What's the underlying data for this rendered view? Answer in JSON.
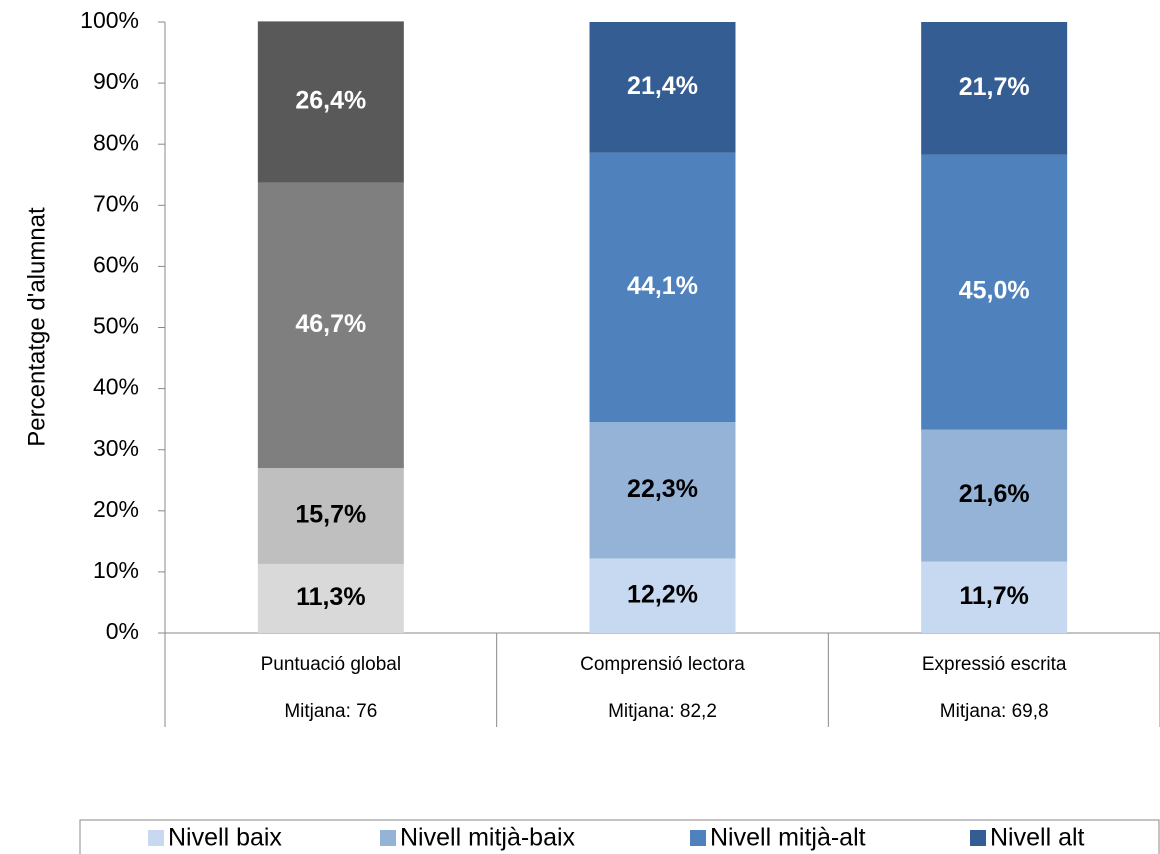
{
  "chart_data": {
    "type": "stacked_bar",
    "ylabel": "Percentatge d'alumnat",
    "categories": [
      "Puntuació global",
      "Comprensió lectora",
      "Expressió escrita"
    ],
    "category_notes": [
      "Mitjana: 76",
      "Mitjana: 82,2",
      "Mitjana: 69,8"
    ],
    "series": [
      {
        "name": "Nivell baix",
        "color": "#c6d9f1",
        "colors": [
          "#d9d9d9",
          "#c6d9f1",
          "#c6d9f1"
        ],
        "values": [
          11.3,
          12.2,
          11.7
        ],
        "value_labels": [
          "11,3%",
          "12,2%",
          "11,7%"
        ]
      },
      {
        "name": "Nivell mitjà-baix",
        "color": "#95b3d7",
        "colors": [
          "#bfbfbf",
          "#95b3d7",
          "#95b3d7"
        ],
        "values": [
          15.7,
          22.3,
          21.6
        ],
        "value_labels": [
          "15,7%",
          "22,3%",
          "21,6%"
        ]
      },
      {
        "name": "Nivell mitjà-alt",
        "color": "#4f81bd",
        "colors": [
          "#7f7f7f",
          "#4f81bd",
          "#4f81bd"
        ],
        "values": [
          46.7,
          44.1,
          45.0
        ],
        "value_labels": [
          "46,7%",
          "44,1%",
          "45,0%"
        ]
      },
      {
        "name": "Nivell alt",
        "color": "#345d94",
        "colors": [
          "#595959",
          "#345d94",
          "#345d94"
        ],
        "values": [
          26.4,
          21.4,
          21.7
        ],
        "value_labels": [
          "26,4%",
          "21,4%",
          "21,7%"
        ]
      }
    ],
    "ylim": [
      0,
      100
    ],
    "yticks": [
      {
        "value": 0,
        "label": "0%"
      },
      {
        "value": 10,
        "label": "10%"
      },
      {
        "value": 20,
        "label": "20%"
      },
      {
        "value": 30,
        "label": "30%"
      },
      {
        "value": 40,
        "label": "40%"
      },
      {
        "value": 50,
        "label": "50%"
      },
      {
        "value": 60,
        "label": "60%"
      },
      {
        "value": 70,
        "label": "70%"
      },
      {
        "value": 80,
        "label": "80%"
      },
      {
        "value": 90,
        "label": "90%"
      },
      {
        "value": 100,
        "label": "100%"
      }
    ],
    "grid": false,
    "legend": "bottom"
  }
}
